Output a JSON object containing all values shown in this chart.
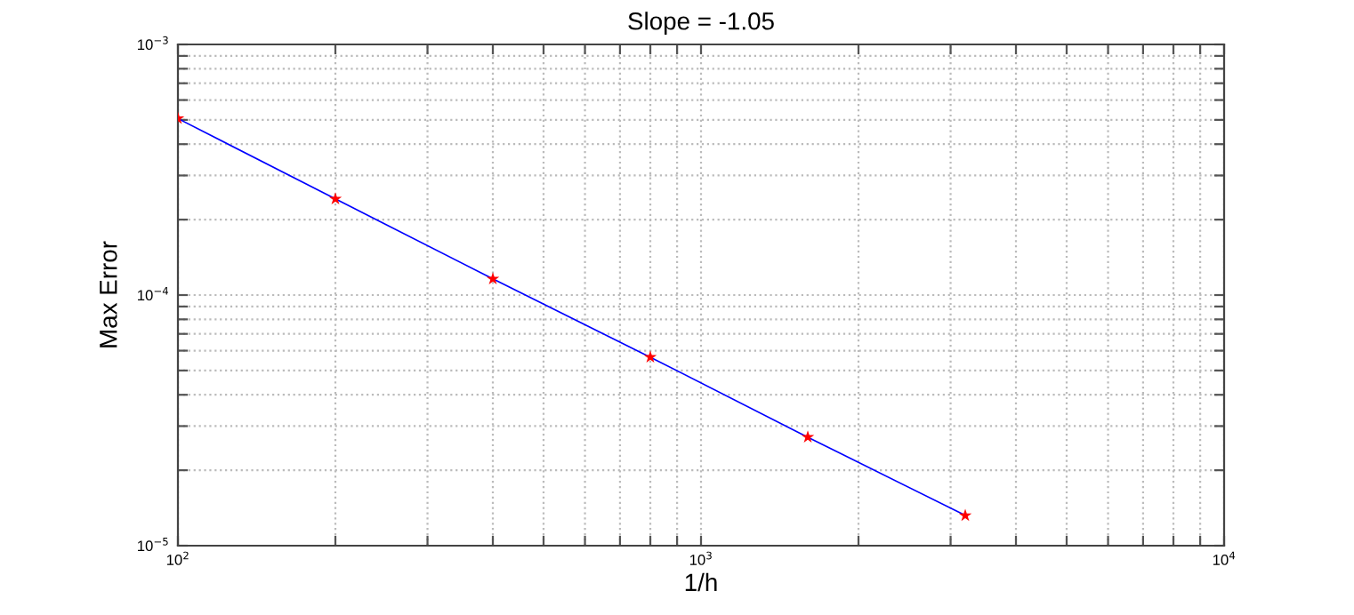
{
  "chart_data": {
    "type": "line",
    "title": "Slope = -1.05",
    "xlabel": "1/h",
    "ylabel": "Max Error",
    "log": "xy",
    "grid": true,
    "x": [
      100,
      200,
      400,
      800,
      1600,
      3200
    ],
    "series": [
      {
        "color": "#0000ff",
        "marker": "none",
        "line_style": "solid",
        "values": [
          0.000506,
          0.000242,
          0.000116,
          5.65e-05,
          2.71e-05,
          1.32e-05
        ]
      },
      {
        "type": "scatter",
        "color": "#ff0000",
        "marker": "star",
        "values": [
          0.000506,
          0.000242,
          0.000116,
          5.65e-05,
          2.71e-05,
          1.32e-05
        ]
      }
    ],
    "xlim": [
      100,
      10000
    ],
    "ylim": [
      1e-05,
      0.001
    ],
    "xticks": [
      {
        "value": 100,
        "label": "10$^{2}$"
      },
      {
        "value": 200,
        "label": null
      },
      {
        "value": 300,
        "label": null
      },
      {
        "value": 400,
        "label": null
      },
      {
        "value": 500,
        "label": null
      },
      {
        "value": 600,
        "label": null
      },
      {
        "value": 700,
        "label": null
      },
      {
        "value": 800,
        "label": null
      },
      {
        "value": 900,
        "label": null
      },
      {
        "value": 1000,
        "label": "10$^{3}$"
      },
      {
        "value": 2000,
        "label": null
      },
      {
        "value": 3000,
        "label": null
      },
      {
        "value": 4000,
        "label": null
      },
      {
        "value": 5000,
        "label": null
      },
      {
        "value": 6000,
        "label": null
      },
      {
        "value": 7000,
        "label": null
      },
      {
        "value": 8000,
        "label": null
      },
      {
        "value": 9000,
        "label": null
      },
      {
        "value": 10000,
        "label": "10$^{4}$"
      }
    ],
    "yticks": [
      {
        "value": 1e-05,
        "label": "10$^{−5}$"
      },
      {
        "value": 2e-05,
        "label": null
      },
      {
        "value": 3e-05,
        "label": null
      },
      {
        "value": 4e-05,
        "label": null
      },
      {
        "value": 5e-05,
        "label": null
      },
      {
        "value": 6e-05,
        "label": null
      },
      {
        "value": 7e-05,
        "label": null
      },
      {
        "value": 8e-05,
        "label": null
      },
      {
        "value": 9e-05,
        "label": null
      },
      {
        "value": 0.0001,
        "label": "10$^{−4}$"
      },
      {
        "value": 0.0002,
        "label": null
      },
      {
        "value": 0.0003,
        "label": null
      },
      {
        "value": 0.0004,
        "label": null
      },
      {
        "value": 0.0005,
        "label": null
      },
      {
        "value": 0.0006,
        "label": null
      },
      {
        "value": 0.0007,
        "label": null
      },
      {
        "value": 0.0008,
        "label": null
      },
      {
        "value": 0.0009,
        "label": null
      },
      {
        "value": 0.001,
        "label": "10$^{−3}$"
      }
    ]
  }
}
